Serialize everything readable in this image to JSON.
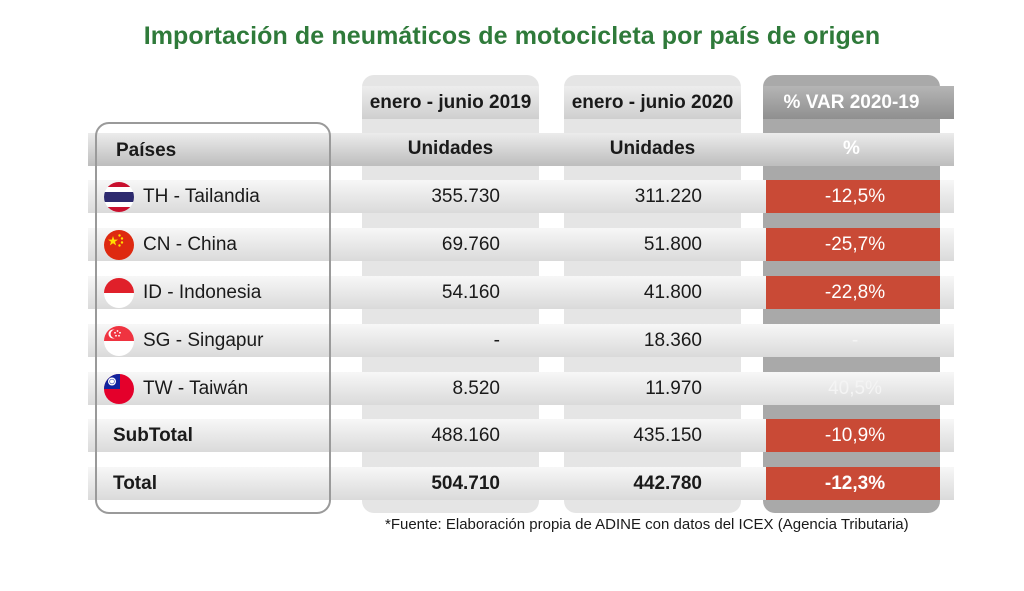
{
  "title": "Importación de neumáticos de motocicleta por país de origen",
  "source": "*Fuente: Elaboración propia de ADINE con datos del ICEX (Agencia Tributaria)",
  "chart_data": {
    "type": "table",
    "title": "Importación de neumáticos de motocicleta por país de origen",
    "period_headers": [
      "enero - junio 2019",
      "enero - junio 2020",
      "% VAR 2020-19"
    ],
    "column_headers": [
      "Países",
      "Unidades",
      "Unidades",
      "%"
    ],
    "rows": [
      {
        "country": "TH - Tailandia",
        "flag": "thailand-flag",
        "y2019": "355.730",
        "y2020": "311.220",
        "var": "-12,5%",
        "highlight": true
      },
      {
        "country": "CN - China",
        "flag": "china-flag",
        "y2019": "69.760",
        "y2020": "51.800",
        "var": "-25,7%",
        "highlight": true
      },
      {
        "country": "ID - Indonesia",
        "flag": "indonesia-flag",
        "y2019": "54.160",
        "y2020": "41.800",
        "var": "-22,8%",
        "highlight": true
      },
      {
        "country": "SG - Singapur",
        "flag": "singapore-flag",
        "y2019": "-",
        "y2020": "18.360",
        "var": "-",
        "highlight": false
      },
      {
        "country": "TW - Taiwán",
        "flag": "taiwan-flag",
        "y2019": "8.520",
        "y2020": "11.970",
        "var": "40,5%",
        "highlight": false
      }
    ],
    "subtotal": {
      "label": "SubTotal",
      "y2019": "488.160",
      "y2020": "435.150",
      "var": "-10,9%"
    },
    "total": {
      "label": "Total",
      "y2019": "504.710",
      "y2020": "442.780",
      "var": "-12,3%"
    },
    "colors": {
      "title": "#2f7a3a",
      "negative_highlight": "#c94a36",
      "var_column": "#a9a9a9"
    }
  }
}
